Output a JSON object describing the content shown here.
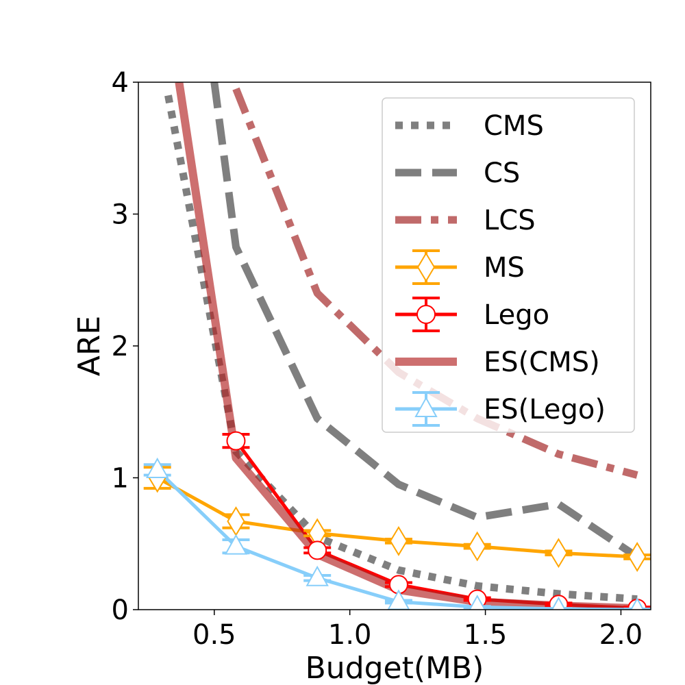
{
  "chart_data": {
    "type": "line",
    "title": "",
    "xlabel": "Budget(MB)",
    "ylabel": "ARE",
    "xlim": [
      0.22,
      2.11
    ],
    "ylim": [
      0,
      4
    ],
    "xticks": [
      "0.5",
      "1.0",
      "1.5",
      "2.0"
    ],
    "yticks": [
      "0",
      "1",
      "2",
      "3",
      "4"
    ],
    "grid": false,
    "legend_position": "top-right",
    "series": [
      {
        "name": "CMS",
        "style": "dotted",
        "color": "#7f7f7f",
        "x": [
          0.33,
          0.58,
          0.88,
          1.18,
          1.47,
          1.77,
          2.06
        ],
        "y": [
          3.9,
          1.2,
          0.55,
          0.3,
          0.18,
          0.12,
          0.08
        ]
      },
      {
        "name": "CS",
        "style": "dashed",
        "color": "#7f7f7f",
        "x": [
          0.5,
          0.58,
          0.88,
          1.18,
          1.47,
          1.77,
          2.06
        ],
        "y": [
          4.0,
          2.75,
          1.45,
          0.95,
          0.7,
          0.8,
          0.4
        ]
      },
      {
        "name": "LCS",
        "style": "dashdot",
        "color": "#c06a6a",
        "x": [
          0.58,
          0.88,
          1.18,
          1.47,
          1.77,
          2.06
        ],
        "y": [
          3.95,
          2.4,
          1.8,
          1.45,
          1.18,
          1.02
        ]
      },
      {
        "name": "MS",
        "style": "solid-marker-diamond",
        "color": "#ffa500",
        "x": [
          0.29,
          0.58,
          0.88,
          1.18,
          1.47,
          1.77,
          2.06
        ],
        "y": [
          1.0,
          0.67,
          0.58,
          0.52,
          0.48,
          0.43,
          0.4
        ],
        "err": [
          0.08,
          0.05,
          0.02,
          0.015,
          0.015,
          0.015,
          0.015
        ]
      },
      {
        "name": "Lego",
        "style": "solid-marker-circle",
        "color": "#ff0000",
        "x": [
          0.58,
          0.88,
          1.18,
          1.47,
          1.77,
          2.06
        ],
        "y": [
          1.28,
          0.45,
          0.19,
          0.08,
          0.04,
          0.01
        ],
        "err": [
          0.05,
          0.02,
          0.015,
          0.01,
          0.01,
          0.01
        ]
      },
      {
        "name": "ES(CMS)",
        "style": "thick-solid",
        "color": "#b22222",
        "x": [
          0.37,
          0.58,
          0.88,
          1.18,
          1.47,
          1.77,
          2.06
        ],
        "y": [
          4.0,
          1.15,
          0.42,
          0.15,
          0.06,
          0.03,
          0.01
        ]
      },
      {
        "name": "ES(Lego)",
        "style": "solid-marker-triangle",
        "color": "#87cefa",
        "x": [
          0.29,
          0.58,
          0.88,
          1.18,
          1.47,
          1.77,
          2.06
        ],
        "y": [
          1.06,
          0.48,
          0.24,
          0.06,
          0.02,
          0.005,
          0.0
        ],
        "err": [
          0.04,
          0.05,
          0.02,
          0.01,
          0.005,
          0.005,
          0.005
        ]
      }
    ]
  }
}
